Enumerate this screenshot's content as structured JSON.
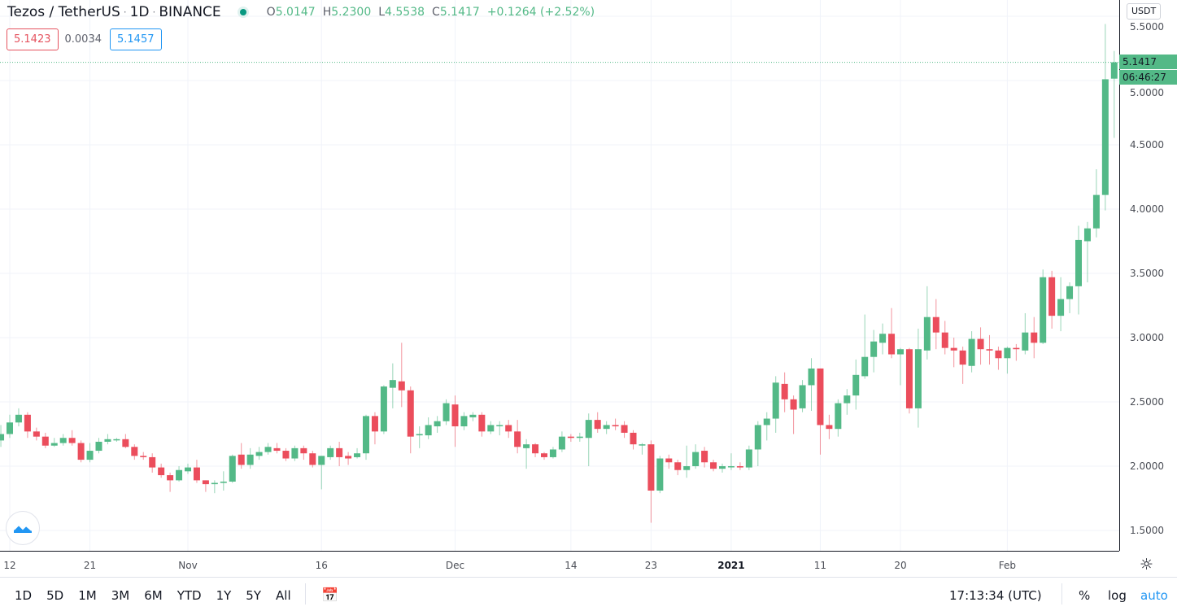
{
  "header": {
    "symbol": "Tezos / TetherUS",
    "interval": "1D",
    "exchange": "BINANCE",
    "separator": "·",
    "ohlc": {
      "o_key": "O",
      "o": "5.0147",
      "h_key": "H",
      "h": "5.2300",
      "l_key": "L",
      "l": "4.5538",
      "c_key": "C",
      "c": "5.1417",
      "change": "+0.1264 (+2.52%)"
    },
    "bid": "5.1423",
    "spread": "0.0034",
    "ask": "5.1457"
  },
  "price_axis": {
    "currency": "USDT",
    "last_price": "5.1417",
    "countdown": "06:46:27"
  },
  "toolbar": {
    "ranges": [
      "1D",
      "5D",
      "1M",
      "3M",
      "6M",
      "YTD",
      "1Y",
      "5Y",
      "All"
    ],
    "clock": "17:13:34 (UTC)",
    "percent": "%",
    "log": "log",
    "auto": "auto"
  },
  "colors": {
    "up": "#53b987",
    "down": "#eb4d5c",
    "grid": "#f0f3fa",
    "accent": "#2196f3"
  },
  "chart_data": {
    "type": "candlestick",
    "title": "Tezos / TetherUS · 1D · BINANCE",
    "ylim": [
      1.45,
      5.55
    ],
    "y_ticks": [
      "1.5000",
      "2.0000",
      "2.5000",
      "3.0000",
      "3.5000",
      "4.0000",
      "4.5000",
      "5.0000",
      "5.5000"
    ],
    "x_ticks": [
      {
        "text": "12",
        "date": "2020-10-12"
      },
      {
        "text": "21",
        "date": "2020-10-21"
      },
      {
        "text": "Nov",
        "date": "2020-11-01"
      },
      {
        "text": "16",
        "date": "2020-11-16"
      },
      {
        "text": "Dec",
        "date": "2020-12-01"
      },
      {
        "text": "14",
        "date": "2020-12-14"
      },
      {
        "text": "23",
        "date": "2020-12-23"
      },
      {
        "text": "2021",
        "date": "2021-01-01",
        "bold": true
      },
      {
        "text": "11",
        "date": "2021-01-11"
      },
      {
        "text": "20",
        "date": "2021-01-20"
      },
      {
        "text": "Feb",
        "date": "2021-02-01"
      }
    ],
    "grid": true,
    "columns": [
      "date",
      "open",
      "high",
      "low",
      "close"
    ],
    "candles": [
      [
        "2020-10-11",
        2.2,
        2.32,
        2.15,
        2.25
      ],
      [
        "2020-10-12",
        2.25,
        2.4,
        2.22,
        2.34
      ],
      [
        "2020-10-13",
        2.34,
        2.45,
        2.31,
        2.4
      ],
      [
        "2020-10-14",
        2.4,
        2.42,
        2.22,
        2.27
      ],
      [
        "2020-10-15",
        2.27,
        2.3,
        2.2,
        2.23
      ],
      [
        "2020-10-16",
        2.23,
        2.26,
        2.14,
        2.16
      ],
      [
        "2020-10-17",
        2.16,
        2.22,
        2.15,
        2.18
      ],
      [
        "2020-10-18",
        2.18,
        2.25,
        2.16,
        2.22
      ],
      [
        "2020-10-19",
        2.22,
        2.28,
        2.16,
        2.18
      ],
      [
        "2020-10-20",
        2.18,
        2.2,
        2.03,
        2.05
      ],
      [
        "2020-10-21",
        2.05,
        2.18,
        2.03,
        2.12
      ],
      [
        "2020-10-22",
        2.12,
        2.22,
        2.1,
        2.19
      ],
      [
        "2020-10-23",
        2.19,
        2.25,
        2.17,
        2.21
      ],
      [
        "2020-10-24",
        2.21,
        2.22,
        2.19,
        2.21
      ],
      [
        "2020-10-25",
        2.21,
        2.25,
        2.14,
        2.15
      ],
      [
        "2020-10-26",
        2.15,
        2.17,
        2.05,
        2.08
      ],
      [
        "2020-10-27",
        2.08,
        2.11,
        2.05,
        2.07
      ],
      [
        "2020-10-28",
        2.07,
        2.1,
        1.95,
        1.99
      ],
      [
        "2020-10-29",
        1.99,
        2.02,
        1.91,
        1.93
      ],
      [
        "2020-10-30",
        1.93,
        1.95,
        1.8,
        1.89
      ],
      [
        "2020-10-31",
        1.89,
        2.0,
        1.88,
        1.97
      ],
      [
        "2020-11-01",
        1.96,
        2.02,
        1.94,
        1.99
      ],
      [
        "2020-11-02",
        1.99,
        2.05,
        1.87,
        1.89
      ],
      [
        "2020-11-03",
        1.89,
        1.89,
        1.8,
        1.86
      ],
      [
        "2020-11-04",
        1.86,
        1.89,
        1.79,
        1.87
      ],
      [
        "2020-11-05",
        1.87,
        1.96,
        1.81,
        1.88
      ],
      [
        "2020-11-06",
        1.88,
        2.09,
        1.87,
        2.08
      ],
      [
        "2020-11-07",
        2.09,
        2.18,
        1.98,
        2.01
      ],
      [
        "2020-11-08",
        2.01,
        2.14,
        1.98,
        2.09
      ],
      [
        "2020-11-09",
        2.08,
        2.15,
        2.05,
        2.11
      ],
      [
        "2020-11-10",
        2.11,
        2.18,
        2.09,
        2.15
      ],
      [
        "2020-11-11",
        2.14,
        2.18,
        2.1,
        2.12
      ],
      [
        "2020-11-12",
        2.12,
        2.14,
        2.04,
        2.06
      ],
      [
        "2020-11-13",
        2.06,
        2.16,
        2.04,
        2.14
      ],
      [
        "2020-11-14",
        2.14,
        2.16,
        2.05,
        2.1
      ],
      [
        "2020-11-15",
        2.1,
        2.12,
        1.99,
        2.01
      ],
      [
        "2020-11-16",
        2.01,
        2.08,
        1.82,
        2.08
      ],
      [
        "2020-11-17",
        2.07,
        2.16,
        2.05,
        2.14
      ],
      [
        "2020-11-18",
        2.14,
        2.19,
        2.0,
        2.07
      ],
      [
        "2020-11-19",
        2.08,
        2.11,
        2.01,
        2.06
      ],
      [
        "2020-11-20",
        2.07,
        2.14,
        2.06,
        2.1
      ],
      [
        "2020-11-21",
        2.1,
        2.4,
        2.05,
        2.39
      ],
      [
        "2020-11-22",
        2.39,
        2.42,
        2.17,
        2.27
      ],
      [
        "2020-11-23",
        2.27,
        2.63,
        2.25,
        2.62
      ],
      [
        "2020-11-24",
        2.61,
        2.8,
        2.45,
        2.67
      ],
      [
        "2020-11-25",
        2.66,
        2.96,
        2.46,
        2.59
      ],
      [
        "2020-11-26",
        2.59,
        2.62,
        2.1,
        2.23
      ],
      [
        "2020-11-27",
        2.24,
        2.31,
        2.14,
        2.25
      ],
      [
        "2020-11-28",
        2.24,
        2.38,
        2.21,
        2.32
      ],
      [
        "2020-11-29",
        2.31,
        2.39,
        2.26,
        2.35
      ],
      [
        "2020-11-30",
        2.35,
        2.52,
        2.32,
        2.49
      ],
      [
        "2020-12-01",
        2.48,
        2.55,
        2.15,
        2.31
      ],
      [
        "2020-12-02",
        2.31,
        2.42,
        2.28,
        2.39
      ],
      [
        "2020-12-03",
        2.38,
        2.42,
        2.35,
        2.4
      ],
      [
        "2020-12-04",
        2.4,
        2.42,
        2.23,
        2.27
      ],
      [
        "2020-12-05",
        2.27,
        2.35,
        2.25,
        2.32
      ],
      [
        "2020-12-06",
        2.32,
        2.35,
        2.24,
        2.32
      ],
      [
        "2020-12-07",
        2.32,
        2.36,
        2.22,
        2.27
      ],
      [
        "2020-12-08",
        2.27,
        2.36,
        2.1,
        2.15
      ],
      [
        "2020-12-09",
        2.14,
        2.21,
        1.98,
        2.17
      ],
      [
        "2020-12-10",
        2.17,
        2.18,
        2.07,
        2.1
      ],
      [
        "2020-12-11",
        2.1,
        2.11,
        2.05,
        2.07
      ],
      [
        "2020-12-12",
        2.07,
        2.15,
        2.06,
        2.13
      ],
      [
        "2020-12-13",
        2.13,
        2.27,
        2.11,
        2.23
      ],
      [
        "2020-12-14",
        2.23,
        2.25,
        2.19,
        2.22
      ],
      [
        "2020-12-15",
        2.22,
        2.26,
        2.19,
        2.23
      ],
      [
        "2020-12-16",
        2.22,
        2.41,
        2.0,
        2.36
      ],
      [
        "2020-12-17",
        2.36,
        2.42,
        2.26,
        2.29
      ],
      [
        "2020-12-18",
        2.29,
        2.35,
        2.25,
        2.32
      ],
      [
        "2020-12-19",
        2.32,
        2.37,
        2.28,
        2.31
      ],
      [
        "2020-12-20",
        2.32,
        2.35,
        2.22,
        2.26
      ],
      [
        "2020-12-21",
        2.26,
        2.28,
        2.13,
        2.17
      ],
      [
        "2020-12-22",
        2.17,
        2.18,
        2.09,
        2.17
      ],
      [
        "2020-12-23",
        2.17,
        2.2,
        1.56,
        1.81
      ],
      [
        "2020-12-24",
        1.81,
        2.08,
        1.79,
        2.06
      ],
      [
        "2020-12-25",
        2.06,
        2.09,
        1.98,
        2.03
      ],
      [
        "2020-12-26",
        2.03,
        2.05,
        1.93,
        1.97
      ],
      [
        "2020-12-27",
        1.97,
        2.16,
        1.91,
        2.0
      ],
      [
        "2020-12-28",
        2.0,
        2.17,
        1.98,
        2.11
      ],
      [
        "2020-12-29",
        2.12,
        2.15,
        1.99,
        2.03
      ],
      [
        "2020-12-30",
        2.03,
        2.05,
        1.96,
        1.98
      ],
      [
        "2020-12-31",
        1.98,
        2.02,
        1.95,
        2.0
      ],
      [
        "2021-01-01",
        2.0,
        2.1,
        1.97,
        2.0
      ],
      [
        "2021-01-02",
        2.0,
        2.03,
        1.97,
        1.99
      ],
      [
        "2021-01-03",
        1.99,
        2.16,
        1.97,
        2.13
      ],
      [
        "2021-01-04",
        2.13,
        2.35,
        2.0,
        2.32
      ],
      [
        "2021-01-05",
        2.32,
        2.42,
        2.2,
        2.37
      ],
      [
        "2021-01-06",
        2.37,
        2.7,
        2.26,
        2.65
      ],
      [
        "2021-01-07",
        2.64,
        2.73,
        2.42,
        2.52
      ],
      [
        "2021-01-08",
        2.52,
        2.55,
        2.25,
        2.44
      ],
      [
        "2021-01-09",
        2.45,
        2.67,
        2.42,
        2.63
      ],
      [
        "2021-01-10",
        2.63,
        2.84,
        2.43,
        2.76
      ],
      [
        "2021-01-11",
        2.76,
        2.76,
        2.09,
        2.32
      ],
      [
        "2021-01-12",
        2.32,
        2.4,
        2.21,
        2.29
      ],
      [
        "2021-01-13",
        2.29,
        2.52,
        2.23,
        2.49
      ],
      [
        "2021-01-14",
        2.49,
        2.6,
        2.4,
        2.55
      ],
      [
        "2021-01-15",
        2.55,
        2.83,
        2.44,
        2.71
      ],
      [
        "2021-01-16",
        2.7,
        3.18,
        2.68,
        2.85
      ],
      [
        "2021-01-17",
        2.85,
        3.06,
        2.73,
        2.97
      ],
      [
        "2021-01-18",
        2.96,
        3.11,
        2.87,
        3.03
      ],
      [
        "2021-01-19",
        3.03,
        3.23,
        2.84,
        2.87
      ],
      [
        "2021-01-20",
        2.87,
        2.92,
        2.63,
        2.91
      ],
      [
        "2021-01-21",
        2.91,
        2.92,
        2.41,
        2.45
      ],
      [
        "2021-01-22",
        2.45,
        3.07,
        2.3,
        2.91
      ],
      [
        "2021-01-23",
        2.9,
        3.4,
        2.83,
        3.16
      ],
      [
        "2021-01-24",
        3.16,
        3.3,
        2.91,
        3.04
      ],
      [
        "2021-01-25",
        3.04,
        3.13,
        2.87,
        2.92
      ],
      [
        "2021-01-26",
        2.92,
        3.0,
        2.77,
        2.9
      ],
      [
        "2021-01-27",
        2.9,
        2.93,
        2.64,
        2.79
      ],
      [
        "2021-01-28",
        2.78,
        3.05,
        2.73,
        2.99
      ],
      [
        "2021-01-29",
        2.99,
        3.08,
        2.79,
        2.91
      ],
      [
        "2021-01-30",
        2.91,
        3.02,
        2.79,
        2.9
      ],
      [
        "2021-01-31",
        2.9,
        2.93,
        2.75,
        2.84
      ],
      [
        "2021-02-01",
        2.84,
        2.93,
        2.72,
        2.92
      ],
      [
        "2021-02-02",
        2.92,
        2.95,
        2.82,
        2.91
      ],
      [
        "2021-02-03",
        2.9,
        3.19,
        2.87,
        3.04
      ],
      [
        "2021-02-04",
        3.04,
        3.16,
        2.84,
        2.96
      ],
      [
        "2021-02-05",
        2.96,
        3.53,
        2.95,
        3.47
      ],
      [
        "2021-02-06",
        3.47,
        3.52,
        3.07,
        3.17
      ],
      [
        "2021-02-07",
        3.17,
        3.47,
        3.05,
        3.3
      ],
      [
        "2021-02-08",
        3.3,
        3.43,
        3.19,
        3.4
      ],
      [
        "2021-02-09",
        3.4,
        3.87,
        3.18,
        3.76
      ],
      [
        "2021-02-10",
        3.75,
        3.9,
        3.43,
        3.85
      ],
      [
        "2021-02-11",
        3.85,
        4.31,
        3.78,
        4.11
      ],
      [
        "2021-02-12",
        4.11,
        5.44,
        3.99,
        5.01
      ],
      [
        "2021-02-13",
        5.0147,
        5.23,
        4.5538,
        5.1417
      ]
    ]
  }
}
